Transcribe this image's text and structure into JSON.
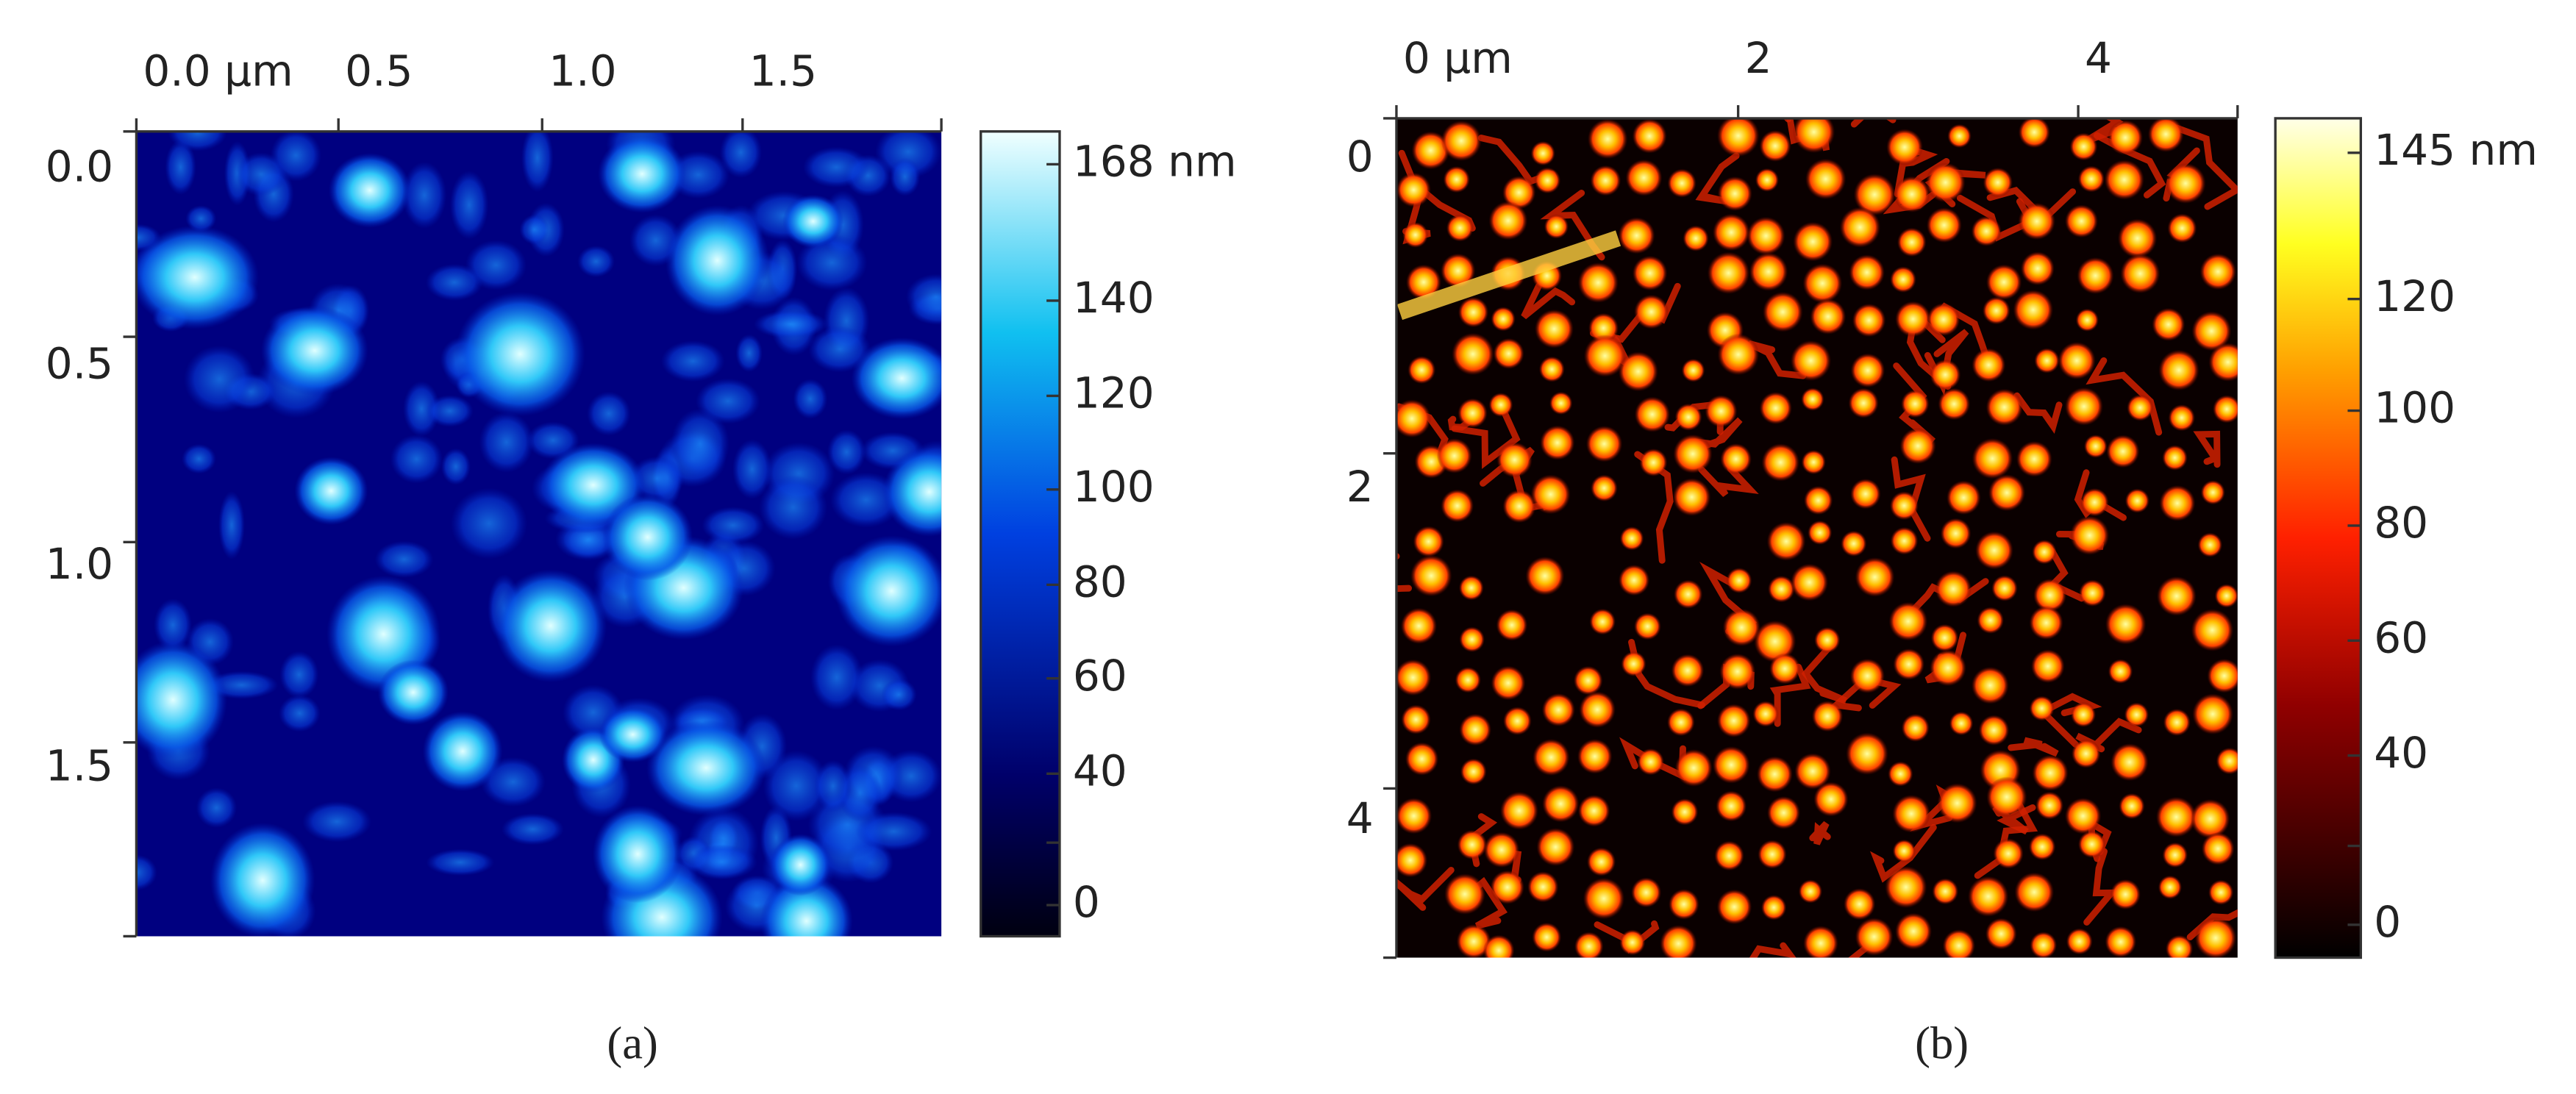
{
  "panels": [
    {
      "label": "(a)",
      "x_ticks": [
        "0.0 μm",
        "0.5",
        "1.0",
        "1.5"
      ],
      "y_ticks": [
        "0.0",
        "0.5",
        "1.0",
        "1.5"
      ],
      "colorbar_ticks": [
        "168 nm",
        "140",
        "120",
        "100",
        "80",
        "60",
        "40",
        "0"
      ]
    },
    {
      "label": "(b)",
      "x_ticks": [
        "0 μm",
        "2",
        "4"
      ],
      "y_ticks": [
        "0",
        "2",
        "4"
      ],
      "colorbar_ticks": [
        "145 nm",
        "120",
        "100",
        "80",
        "60",
        "40",
        "0"
      ]
    }
  ]
}
